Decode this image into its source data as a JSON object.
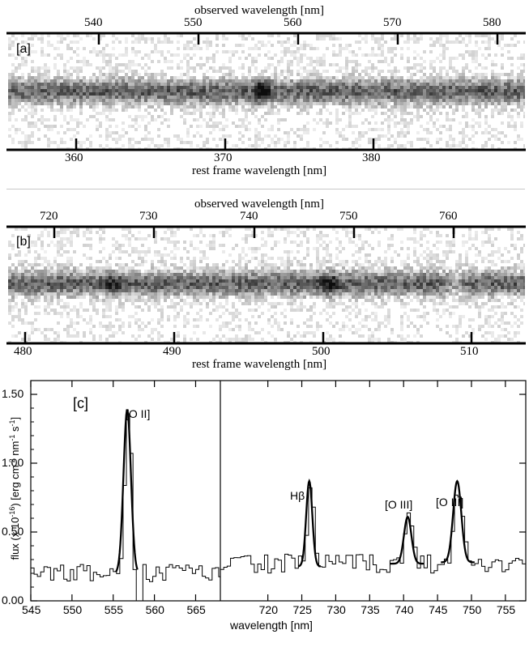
{
  "panel_a": {
    "tag": "[a]",
    "top_axis_label": "observed wavelength [nm]",
    "bottom_axis_label": "rest frame wavelength [nm]",
    "top_ticks": [
      "540",
      "550",
      "560",
      "570",
      "580"
    ],
    "bottom_ticks": [
      "360",
      "370",
      "380"
    ]
  },
  "panel_b": {
    "tag": "[b]",
    "top_axis_label": "observed wavelength [nm]",
    "bottom_axis_label": "rest frame wavelength [nm]",
    "top_ticks": [
      "720",
      "730",
      "740",
      "750",
      "760"
    ],
    "bottom_ticks": [
      "480",
      "490",
      "500",
      "510"
    ]
  },
  "chart_data": {
    "type": "line",
    "tag": "[c]",
    "xlabel": "wavelength [nm]",
    "ylabel": "flux (x 10^-16) [erg cm^-2 nm^-1 s^-1]",
    "ylabel_parts": {
      "a": "flux (x 10",
      "b": "-16",
      "c": ") [erg cm",
      "d": "-2",
      "e": " nm",
      "f": "-1",
      "g": " s",
      "h": "-1",
      "i": "]"
    },
    "ylim": [
      0,
      1.6
    ],
    "yticks": [
      "0.00",
      "0.50",
      "1.00",
      "1.50"
    ],
    "left_xlim": [
      545,
      568
    ],
    "left_xticks": [
      "545",
      "550",
      "555",
      "560",
      "565"
    ],
    "right_xlim": [
      713,
      758
    ],
    "right_xticks": [
      "720",
      "725",
      "730",
      "735",
      "740",
      "745",
      "750",
      "755"
    ],
    "annotations": [
      "[O II]",
      "Hβ",
      "[O III]",
      "[O III]"
    ],
    "lines": [
      {
        "label": "[O II]",
        "center": 556.7,
        "peak": 1.19,
        "sigma": 0.45,
        "baseline": 0.2
      },
      {
        "label": "Hβ",
        "center": 726.1,
        "peak": 0.62,
        "sigma": 0.45,
        "baseline": 0.25
      },
      {
        "label": "[O III]",
        "center": 740.6,
        "peak": 0.34,
        "sigma": 0.55,
        "baseline": 0.27
      },
      {
        "label": "[O III]",
        "center": 747.9,
        "peak": 0.59,
        "sigma": 0.6,
        "baseline": 0.28
      }
    ]
  }
}
